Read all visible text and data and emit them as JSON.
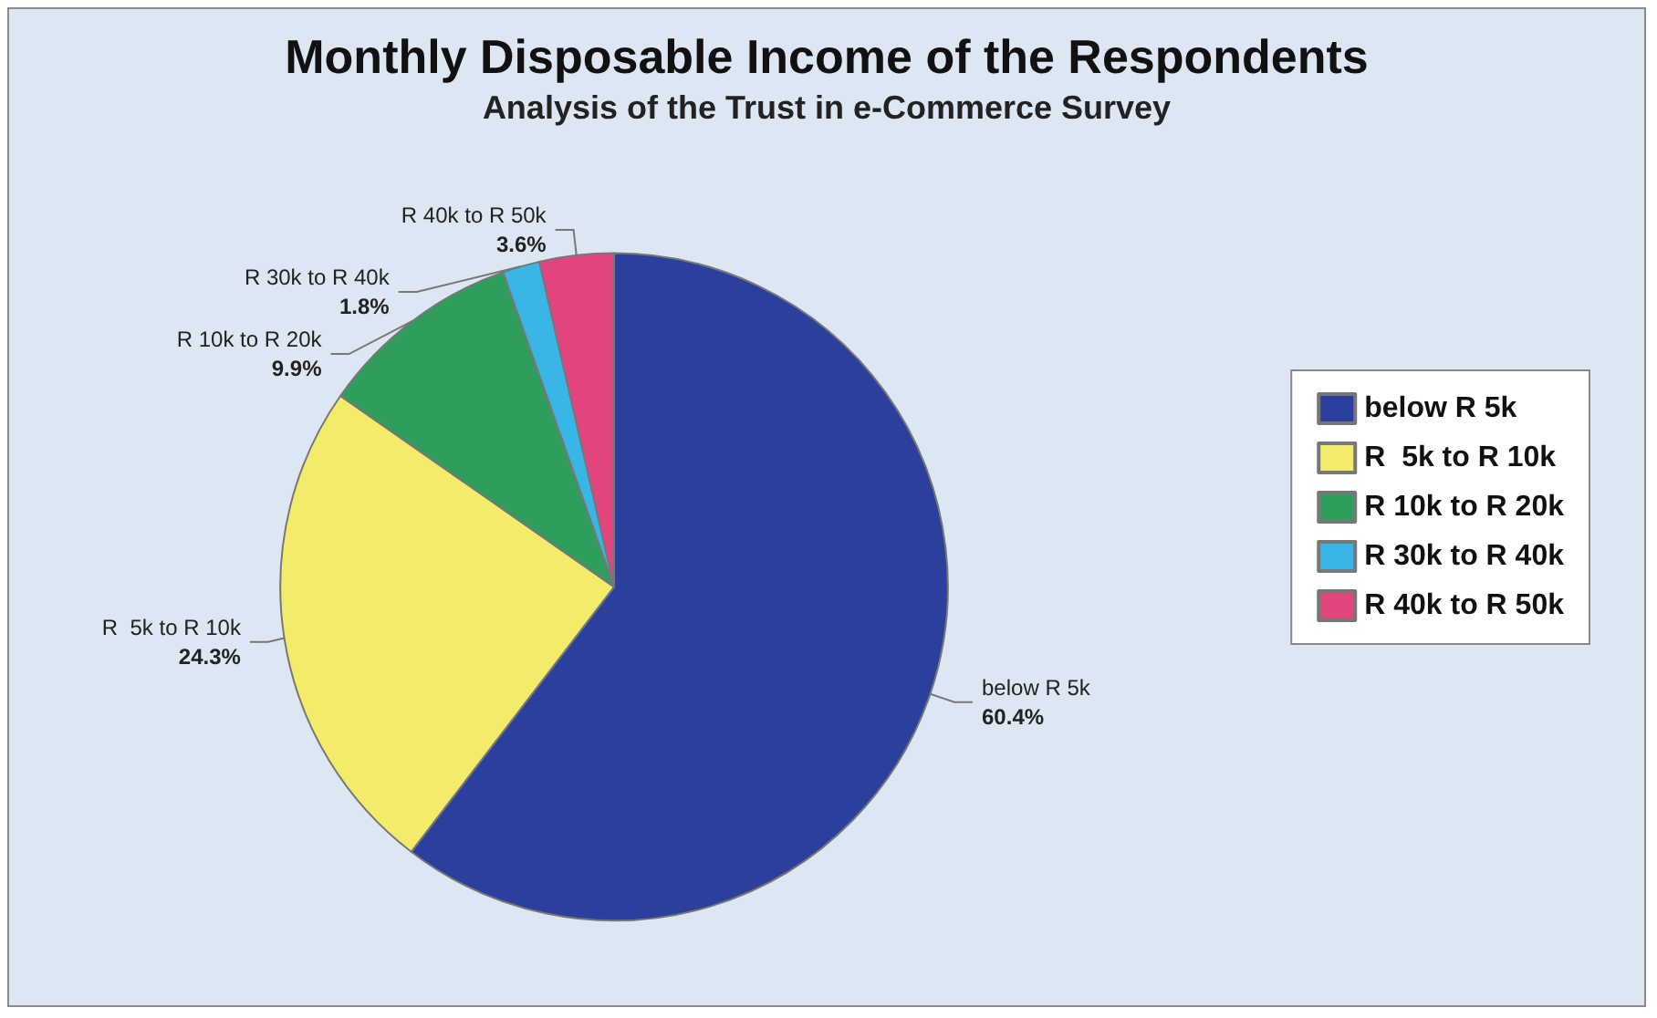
{
  "chart_data": {
    "type": "pie",
    "title": "Monthly Disposable Income of the Respondents",
    "subtitle": "Analysis of the Trust in e-Commerce Survey",
    "categories": [
      "below R 5k",
      "R  5k to R 10k",
      "R 10k to R 20k",
      "R 30k to R 40k",
      "R 40k to R 50k"
    ],
    "values": [
      60.4,
      24.3,
      9.9,
      1.8,
      3.6
    ],
    "value_labels": [
      "60.4%",
      "24.3%",
      "9.9%",
      "1.8%",
      "3.6%"
    ],
    "colors": [
      "#2b3f9c",
      "#f3ec6a",
      "#2f9d5c",
      "#3ab6e6",
      "#e2457e"
    ],
    "legend": "right"
  }
}
